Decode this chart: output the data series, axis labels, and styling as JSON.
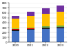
{
  "years": [
    "2020",
    "2021",
    "2022",
    "2023"
  ],
  "segments": [
    {
      "values": [
        235,
        255,
        270,
        285
      ],
      "color": "#4472c4"
    },
    {
      "values": [
        18,
        18,
        18,
        18
      ],
      "color": "#1a1a1a"
    },
    {
      "values": [
        6,
        6,
        6,
        6
      ],
      "color": "#404040"
    },
    {
      "values": [
        8,
        9,
        10,
        10
      ],
      "color": "#ff0000"
    },
    {
      "values": [
        10,
        10,
        18,
        18
      ],
      "color": "#70ad47"
    },
    {
      "values": [
        8,
        8,
        8,
        8
      ],
      "color": "#92d050"
    },
    {
      "values": [
        200,
        230,
        255,
        270
      ],
      "color": "#ffc000"
    },
    {
      "values": [
        55,
        90,
        110,
        130
      ],
      "color": "#7030a0"
    }
  ],
  "ylim": [
    0,
    800
  ],
  "yticks": [
    0,
    100,
    200,
    300,
    400,
    500,
    600,
    700,
    800
  ],
  "background_color": "#ffffff"
}
